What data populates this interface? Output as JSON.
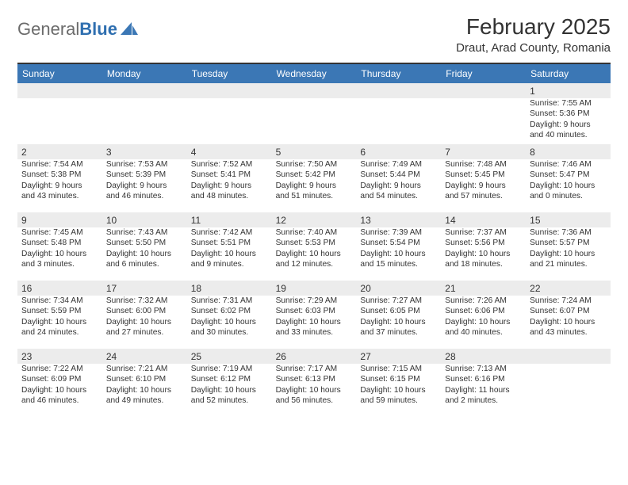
{
  "logo": {
    "text_gray": "General",
    "text_blue": "Blue",
    "shape_color": "#3b77b5"
  },
  "header": {
    "month_title": "February 2025",
    "location": "Draut, Arad County, Romania"
  },
  "colors": {
    "header_bar": "#3b77b5",
    "header_bar_text": "#ffffff",
    "daynum_bg": "#ececec",
    "cell_bg": "#ffffff",
    "border_top": "#333333",
    "text": "#333333"
  },
  "weekdays": [
    "Sunday",
    "Monday",
    "Tuesday",
    "Wednesday",
    "Thursday",
    "Friday",
    "Saturday"
  ],
  "weeks": [
    [
      null,
      null,
      null,
      null,
      null,
      null,
      {
        "n": "1",
        "sunrise": "7:55 AM",
        "sunset": "5:36 PM",
        "day_h": "9",
        "day_m": "40"
      }
    ],
    [
      {
        "n": "2",
        "sunrise": "7:54 AM",
        "sunset": "5:38 PM",
        "day_h": "9",
        "day_m": "43"
      },
      {
        "n": "3",
        "sunrise": "7:53 AM",
        "sunset": "5:39 PM",
        "day_h": "9",
        "day_m": "46"
      },
      {
        "n": "4",
        "sunrise": "7:52 AM",
        "sunset": "5:41 PM",
        "day_h": "9",
        "day_m": "48"
      },
      {
        "n": "5",
        "sunrise": "7:50 AM",
        "sunset": "5:42 PM",
        "day_h": "9",
        "day_m": "51"
      },
      {
        "n": "6",
        "sunrise": "7:49 AM",
        "sunset": "5:44 PM",
        "day_h": "9",
        "day_m": "54"
      },
      {
        "n": "7",
        "sunrise": "7:48 AM",
        "sunset": "5:45 PM",
        "day_h": "9",
        "day_m": "57"
      },
      {
        "n": "8",
        "sunrise": "7:46 AM",
        "sunset": "5:47 PM",
        "day_h": "10",
        "day_m": "0"
      }
    ],
    [
      {
        "n": "9",
        "sunrise": "7:45 AM",
        "sunset": "5:48 PM",
        "day_h": "10",
        "day_m": "3"
      },
      {
        "n": "10",
        "sunrise": "7:43 AM",
        "sunset": "5:50 PM",
        "day_h": "10",
        "day_m": "6"
      },
      {
        "n": "11",
        "sunrise": "7:42 AM",
        "sunset": "5:51 PM",
        "day_h": "10",
        "day_m": "9"
      },
      {
        "n": "12",
        "sunrise": "7:40 AM",
        "sunset": "5:53 PM",
        "day_h": "10",
        "day_m": "12"
      },
      {
        "n": "13",
        "sunrise": "7:39 AM",
        "sunset": "5:54 PM",
        "day_h": "10",
        "day_m": "15"
      },
      {
        "n": "14",
        "sunrise": "7:37 AM",
        "sunset": "5:56 PM",
        "day_h": "10",
        "day_m": "18"
      },
      {
        "n": "15",
        "sunrise": "7:36 AM",
        "sunset": "5:57 PM",
        "day_h": "10",
        "day_m": "21"
      }
    ],
    [
      {
        "n": "16",
        "sunrise": "7:34 AM",
        "sunset": "5:59 PM",
        "day_h": "10",
        "day_m": "24"
      },
      {
        "n": "17",
        "sunrise": "7:32 AM",
        "sunset": "6:00 PM",
        "day_h": "10",
        "day_m": "27"
      },
      {
        "n": "18",
        "sunrise": "7:31 AM",
        "sunset": "6:02 PM",
        "day_h": "10",
        "day_m": "30"
      },
      {
        "n": "19",
        "sunrise": "7:29 AM",
        "sunset": "6:03 PM",
        "day_h": "10",
        "day_m": "33"
      },
      {
        "n": "20",
        "sunrise": "7:27 AM",
        "sunset": "6:05 PM",
        "day_h": "10",
        "day_m": "37"
      },
      {
        "n": "21",
        "sunrise": "7:26 AM",
        "sunset": "6:06 PM",
        "day_h": "10",
        "day_m": "40"
      },
      {
        "n": "22",
        "sunrise": "7:24 AM",
        "sunset": "6:07 PM",
        "day_h": "10",
        "day_m": "43"
      }
    ],
    [
      {
        "n": "23",
        "sunrise": "7:22 AM",
        "sunset": "6:09 PM",
        "day_h": "10",
        "day_m": "46"
      },
      {
        "n": "24",
        "sunrise": "7:21 AM",
        "sunset": "6:10 PM",
        "day_h": "10",
        "day_m": "49"
      },
      {
        "n": "25",
        "sunrise": "7:19 AM",
        "sunset": "6:12 PM",
        "day_h": "10",
        "day_m": "52"
      },
      {
        "n": "26",
        "sunrise": "7:17 AM",
        "sunset": "6:13 PM",
        "day_h": "10",
        "day_m": "56"
      },
      {
        "n": "27",
        "sunrise": "7:15 AM",
        "sunset": "6:15 PM",
        "day_h": "10",
        "day_m": "59"
      },
      {
        "n": "28",
        "sunrise": "7:13 AM",
        "sunset": "6:16 PM",
        "day_h": "11",
        "day_m": "2"
      },
      null
    ]
  ],
  "labels": {
    "sunrise_prefix": "Sunrise: ",
    "sunset_prefix": "Sunset: ",
    "daylight_prefix": "Daylight: ",
    "hours_word": " hours",
    "and_word": "and ",
    "minutes_word": " minutes."
  }
}
